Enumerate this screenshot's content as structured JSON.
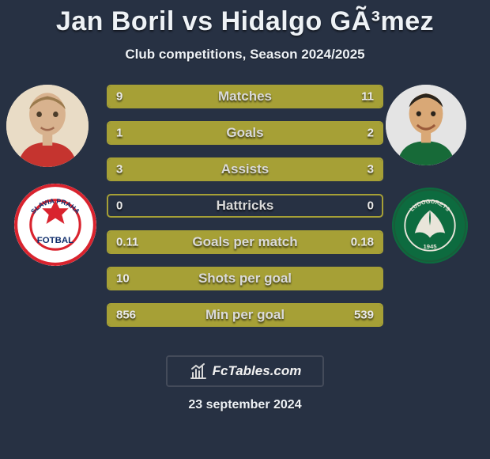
{
  "title": {
    "left_name": "Jan Boril",
    "separator": "vs",
    "right_name": "Hidalgo GÃ³mez",
    "fontsize": 34,
    "color": "#eef2f6"
  },
  "subtitle": {
    "text": "Club competitions, Season 2024/2025",
    "fontsize": 17
  },
  "background_color": "#273143",
  "bar_style": {
    "border_color": "#a6a036",
    "fill_color": "#a6a036",
    "label_fontsize": 17,
    "value_fontsize": 15
  },
  "metrics": [
    {
      "label": "Matches",
      "left_val": "9",
      "right_val": "11",
      "left_pct": 45,
      "right_pct": 55
    },
    {
      "label": "Goals",
      "left_val": "1",
      "right_val": "2",
      "left_pct": 33,
      "right_pct": 67
    },
    {
      "label": "Assists",
      "left_val": "3",
      "right_val": "3",
      "left_pct": 50,
      "right_pct": 50
    },
    {
      "label": "Hattricks",
      "left_val": "0",
      "right_val": "0",
      "left_pct": 0,
      "right_pct": 0
    },
    {
      "label": "Goals per match",
      "left_val": "0.11",
      "right_val": "0.18",
      "left_pct": 38,
      "right_pct": 62
    },
    {
      "label": "Shots per goal",
      "left_val": "10",
      "right_val": "",
      "left_pct": 100,
      "right_pct": 0
    },
    {
      "label": "Min per goal",
      "left_val": "856",
      "right_val": "539",
      "left_pct": 61,
      "right_pct": 39
    }
  ],
  "players": {
    "left": {
      "club": "Slavia Praha",
      "badge_bg": "#ffffff",
      "badge_border": "#d9232e",
      "badge_text_color": "#0f2d6b"
    },
    "right": {
      "club": "Ludogorets",
      "badge_bg": "#0d6b3f",
      "eagle_color": "#e9e5da"
    }
  },
  "footer": {
    "brand": "FcTables.com",
    "fontsize": 17,
    "icon_color": "#dadada",
    "border_color": "#444b5a"
  },
  "date": {
    "text": "23 september 2024",
    "fontsize": 16
  }
}
